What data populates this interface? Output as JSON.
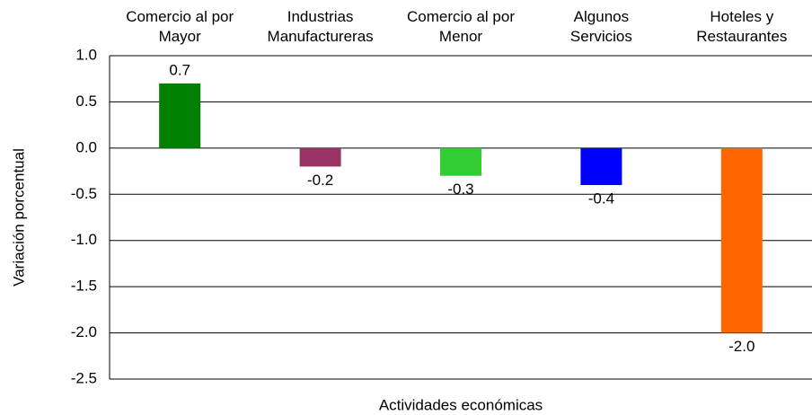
{
  "chart_data": {
    "type": "bar",
    "y_label": "Variación porcentual",
    "x_label": "Actividades económicas",
    "categories": [
      "Comercio al por\nMayor",
      "Industrias\nManufactureras",
      "Comercio al por\nMenor",
      "Algunos\nServicios",
      "Hoteles y\nRestaurantes"
    ],
    "values": [
      0.7,
      -0.2,
      -0.3,
      -0.4,
      -2.0
    ],
    "value_labels": [
      "0.7",
      "-0.2",
      "-0.3",
      "-0.4",
      "-2.0"
    ],
    "colors": [
      "#008000",
      "#993366",
      "#33cc33",
      "#0000ff",
      "#ff6600"
    ],
    "ylim": [
      -2.5,
      1.0
    ],
    "yticks": [
      {
        "value": 1.0,
        "label": "1.0"
      },
      0.5,
      {
        "value": 0.0,
        "label": "0.0"
      },
      -0.5,
      {
        "value": -1.0,
        "label": "-1.0"
      },
      -1.5,
      {
        "value": -2.0,
        "label": "-2.0"
      },
      -2.5
    ],
    "grid": true
  }
}
